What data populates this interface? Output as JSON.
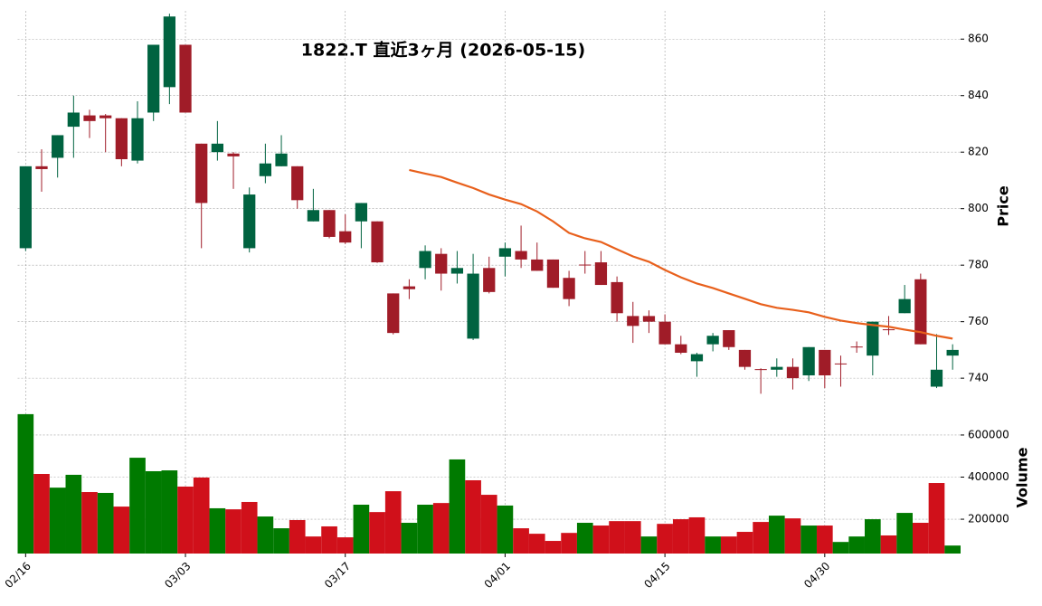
{
  "chart_data": {
    "type": "candlestick",
    "title": "1822.T  直近3ヶ月  (2026-05-15)",
    "categories": [
      "02/16",
      null,
      null,
      null,
      null,
      null,
      null,
      null,
      null,
      null,
      "03/03",
      null,
      null,
      null,
      null,
      null,
      null,
      null,
      null,
      null,
      "03/17",
      null,
      null,
      null,
      null,
      null,
      null,
      null,
      null,
      null,
      "04/01",
      null,
      null,
      null,
      null,
      null,
      null,
      null,
      null,
      null,
      "04/15",
      null,
      null,
      null,
      null,
      null,
      null,
      null,
      null,
      null,
      "04/30",
      null,
      null,
      null,
      null,
      null,
      null,
      null,
      null
    ],
    "open": [
      786,
      815,
      818,
      829,
      833,
      833,
      832,
      817,
      834,
      843,
      858,
      823,
      820,
      819.5,
      786,
      811.5,
      815,
      815,
      795.5,
      799.5,
      792,
      795.5,
      795.5,
      770,
      772.5,
      779,
      784,
      777,
      754,
      779,
      783,
      785,
      782,
      782,
      775.5,
      780.2,
      781,
      774,
      762,
      762,
      760,
      752,
      746,
      752,
      757,
      750,
      743.2,
      743,
      744,
      741,
      750,
      745.2,
      751.2,
      748,
      757.3,
      763,
      775,
      737,
      748
    ],
    "high": [
      815,
      821,
      826,
      840,
      835,
      833.5,
      832,
      838,
      858,
      869,
      858,
      823,
      831,
      820,
      807.5,
      823,
      826,
      815,
      807,
      799.5,
      798,
      802,
      795.5,
      770,
      775,
      787,
      786,
      785,
      784,
      783,
      788,
      794,
      788,
      782,
      778,
      785,
      785,
      776,
      767,
      764,
      762.6,
      755,
      749,
      756,
      757,
      750,
      743.5,
      747,
      747,
      751,
      750,
      748,
      753,
      760,
      762,
      773,
      777,
      755.6,
      752
    ],
    "low": [
      785,
      806,
      811,
      818,
      825,
      820,
      815,
      816,
      831,
      837,
      834,
      786,
      817,
      807,
      784.5,
      809,
      815,
      800,
      795.5,
      789.5,
      787.5,
      786,
      780.8,
      755.5,
      768,
      775,
      771,
      773.5,
      753.5,
      770,
      776,
      779,
      778,
      772,
      765.5,
      777,
      773,
      760,
      752.5,
      756,
      752,
      748.5,
      740.5,
      749.5,
      750,
      743,
      734.5,
      740.5,
      736,
      739,
      736.5,
      737,
      749,
      741,
      755.3,
      763,
      752,
      736.5,
      743
    ],
    "close": [
      815,
      814,
      826,
      834,
      831,
      832,
      817.5,
      832,
      858,
      868,
      834,
      802,
      823,
      818.5,
      805,
      816,
      819.5,
      803,
      799.5,
      790,
      788,
      802,
      781,
      756,
      771.5,
      785,
      777,
      779,
      777,
      770.5,
      786,
      782,
      778,
      772,
      768,
      780,
      773,
      763,
      758.5,
      760,
      752,
      749,
      748.5,
      755,
      751,
      744,
      743,
      744,
      740,
      751,
      741,
      745,
      751,
      760,
      757,
      768,
      752,
      743,
      750
    ],
    "up_color": "#006340",
    "down_color": "#a01c28",
    "ylim": [
      733,
      870
    ],
    "yticks": [
      740,
      760,
      780,
      800,
      820,
      840,
      860
    ],
    "ylabel": "Price",
    "grid": true,
    "ma": {
      "color": "#e8601c",
      "values": [
        null,
        null,
        null,
        null,
        null,
        null,
        null,
        null,
        null,
        null,
        null,
        null,
        null,
        null,
        null,
        null,
        null,
        null,
        null,
        null,
        null,
        null,
        null,
        null,
        813.7,
        812.4,
        811.2,
        809.2,
        807.3,
        805,
        803.2,
        801.6,
        799,
        795.5,
        791.4,
        789.5,
        788.2,
        785.6,
        783.1,
        781.2,
        778.3,
        775.7,
        773.5,
        771.9,
        770,
        768.1,
        766.2,
        764.9,
        764.2,
        763.3,
        761.7,
        760.4,
        759.5,
        758.8,
        758.2,
        757.2,
        756.3,
        755,
        754
      ]
    },
    "volume": {
      "ylabel": "Volume",
      "up_color": "#007a00",
      "down_color": "#d0101a",
      "ylim": [
        37000,
        763000
      ],
      "yticks": [
        200000,
        400000,
        600000
      ],
      "values": [
        699000,
        415000,
        350000,
        411000,
        329000,
        325000,
        260000,
        492000,
        428000,
        432000,
        355000,
        398000,
        252000,
        247000,
        282000,
        213000,
        157000,
        196000,
        118000,
        166000,
        114000,
        269000,
        234000,
        333000,
        183000,
        269000,
        277000,
        484000,
        385000,
        316000,
        265000,
        157000,
        131000,
        97000,
        135000,
        183000,
        170000,
        191000,
        191000,
        118000,
        178000,
        200000,
        209000,
        118000,
        118000,
        140000,
        187000,
        217000,
        204000,
        170000,
        170000,
        92000,
        118000,
        200000,
        123000,
        230000,
        183000,
        372000,
        75000
      ]
    }
  }
}
